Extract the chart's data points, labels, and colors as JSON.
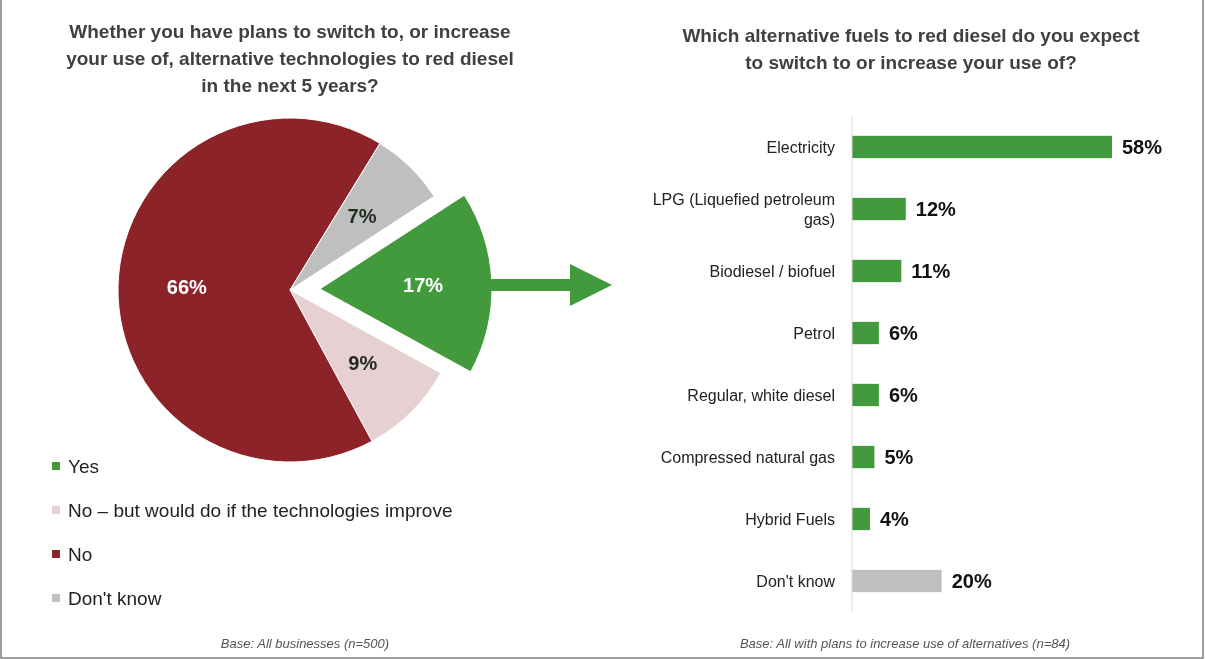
{
  "chart_data": [
    {
      "type": "pie",
      "title": "Whether you have plans to switch to, or increase your use of, alternative technologies to red diesel in the next 5 years?",
      "categories": [
        "Yes",
        "No – but would do if the technologies improve",
        "No",
        "Don't know"
      ],
      "values": [
        17,
        9,
        66,
        7
      ],
      "colors": [
        "#439a3c",
        "#e6d0d2",
        "#8b2329",
        "#bfbfbf"
      ],
      "value_labels": [
        "17%",
        "9%",
        "66%",
        "7%"
      ],
      "legend": "bottom left",
      "annotations": [
        "Base: All businesses (n=500)"
      ]
    },
    {
      "type": "bar",
      "orientation": "horizontal",
      "title": "Which alternative fuels to red diesel do you expect to switch to or increase your use of?",
      "categories": [
        "Electricity",
        "LPG (Liquefied petroleum gas)",
        "Biodiesel / biofuel",
        "Petrol",
        "Regular, white diesel",
        "Compressed natural gas",
        "Hybrid Fuels",
        "Don't know"
      ],
      "values": [
        58,
        12,
        11,
        6,
        6,
        5,
        4,
        20
      ],
      "colors": [
        "#439a3c",
        "#439a3c",
        "#439a3c",
        "#439a3c",
        "#439a3c",
        "#439a3c",
        "#439a3c",
        "#bfbfbf"
      ],
      "value_labels": [
        "58%",
        "12%",
        "11%",
        "6%",
        "6%",
        "5%",
        "4%",
        "20%"
      ],
      "annotations": [
        "Base: All with plans to increase use of alternatives (n=84)"
      ]
    }
  ]
}
